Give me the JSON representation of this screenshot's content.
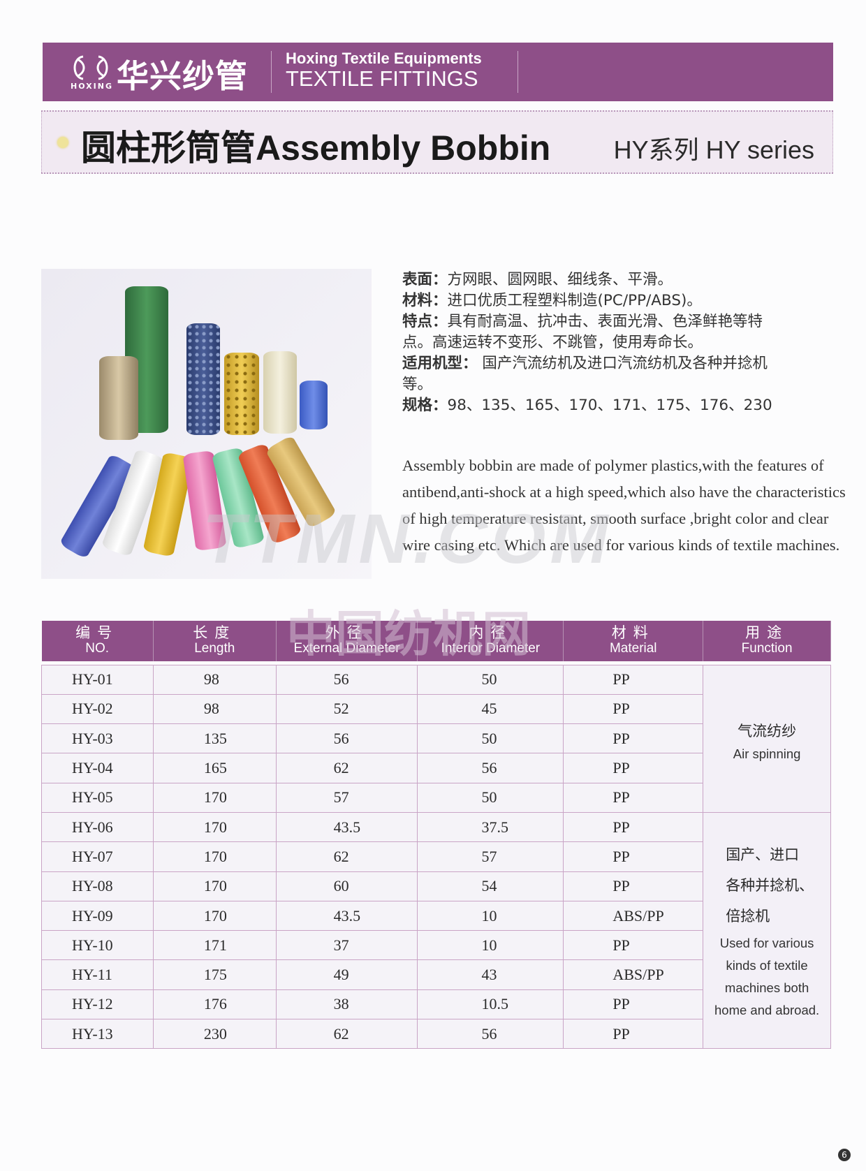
{
  "header": {
    "logo_cn": "华兴纱管",
    "logo_en": "HOXING",
    "brand_line1": "Hoxing Textile Equipments",
    "brand_line2": "TEXTILE FITTINGS",
    "brand_color": "#8e4f88"
  },
  "title": {
    "main": "圆柱形筒管Assembly Bobbin",
    "series": "HY系列 HY series"
  },
  "specs": [
    {
      "label": "表面：",
      "text": "方网眼、圆网眼、细线条、平滑。"
    },
    {
      "label": "材料：",
      "text": "进口优质工程塑料制造(PC/PP/ABS)。"
    },
    {
      "label": "特点：",
      "text": "具有耐高温、抗冲击、表面光滑、色泽鲜艳等特点。高速运转不变形、不跳管，使用寿命长。"
    },
    {
      "label": "适用机型：",
      "text": " 国产汽流纺机及进口汽流纺机及各种并捻机等。"
    },
    {
      "label": "规格：",
      "text": "98、135、165、170、171、175、176、230"
    }
  ],
  "description": "Assembly bobbin are made of polymer plastics,with the features of antibend,anti-shock at a high speed,which also have the characteristics of high temperature resistant, smooth surface ,bright color and clear wire casing etc. Which are used for various kinds of textile machines.",
  "watermarks": [
    "TTMN.COM",
    "中国纺机网"
  ],
  "table": {
    "headers": [
      {
        "cn": "编号",
        "en": "NO."
      },
      {
        "cn": "长度",
        "en": "Length"
      },
      {
        "cn": "外径",
        "en": "External Diameter"
      },
      {
        "cn": "内径",
        "en": "Interior Diameter"
      },
      {
        "cn": "材料",
        "en": "Material"
      },
      {
        "cn": "用途",
        "en": "Function"
      }
    ],
    "rows": [
      [
        "HY-01",
        "98",
        "56",
        "50",
        "PP"
      ],
      [
        "HY-02",
        "98",
        "52",
        "45",
        "PP"
      ],
      [
        "HY-03",
        "135",
        "56",
        "50",
        "PP"
      ],
      [
        "HY-04",
        "165",
        "62",
        "56",
        "PP"
      ],
      [
        "HY-05",
        "170",
        "57",
        "50",
        "PP"
      ],
      [
        "HY-06",
        "170",
        "43.5",
        "37.5",
        "PP"
      ],
      [
        "HY-07",
        "170",
        "62",
        "57",
        "PP"
      ],
      [
        "HY-08",
        "170",
        "60",
        "54",
        "PP"
      ],
      [
        "HY-09",
        "170",
        "43.5",
        "10",
        "ABS/PP"
      ],
      [
        "HY-10",
        "171",
        "37",
        "10",
        "PP"
      ],
      [
        "HY-11",
        "175",
        "49",
        "43",
        "ABS/PP"
      ],
      [
        "HY-12",
        "176",
        "38",
        "10.5",
        "PP"
      ],
      [
        "HY-13",
        "230",
        "62",
        "56",
        "PP"
      ]
    ],
    "functions": [
      {
        "cn": "气流纺纱",
        "en": "Air spinning"
      },
      {
        "cn_lines": [
          "国产、进口",
          "各种并捻机、",
          "倍捻机"
        ],
        "en_lines": [
          "Used for various",
          "kinds of textile",
          "machines both",
          "home and abroad."
        ]
      }
    ]
  },
  "page_number": "6"
}
